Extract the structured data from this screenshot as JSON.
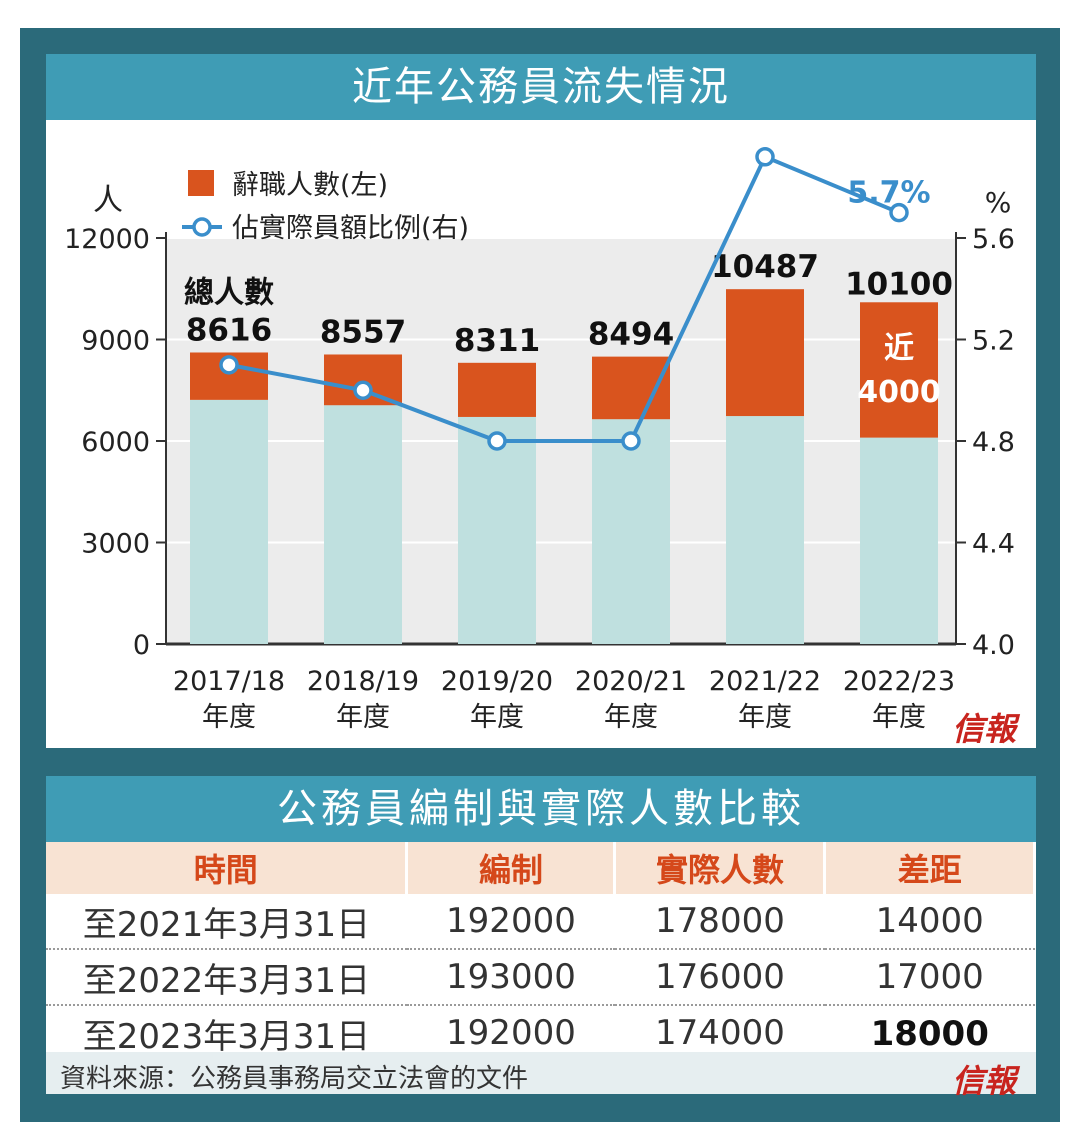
{
  "chart_title": "近年公務員流失情況",
  "logo_text": "信報",
  "chart_data": {
    "type": "bar",
    "title": "近年公務員流失情況",
    "categories": [
      "2017/18\n年度",
      "2018/19\n年度",
      "2019/20\n年度",
      "2020/21\n年度",
      "2021/22\n年度",
      "2022/23\n年度"
    ],
    "y_left_unit": "人",
    "y_right_unit": "%",
    "ylim_left": [
      0,
      12000
    ],
    "ylim_right": [
      4.0,
      5.6
    ],
    "yticks_left": [
      "0",
      "3000",
      "6000",
      "9000",
      "12000"
    ],
    "yticks_right": [
      "4.0",
      "4.4",
      "4.8",
      "5.2",
      "5.6"
    ],
    "total_label": "總人數",
    "totals": [
      8616,
      8557,
      8311,
      8494,
      10487,
      10100
    ],
    "total_labels": [
      "8616",
      "8557",
      "8311",
      "8494",
      "10487",
      "10100"
    ],
    "resignations": [
      1400,
      1500,
      1600,
      1850,
      3750,
      4000
    ],
    "ratio": [
      5.1,
      5.0,
      4.8,
      4.8,
      5.92,
      5.7
    ],
    "ratio_label_last": "5.7%",
    "bar_annotation": [
      "近",
      "4000"
    ],
    "legend": [
      {
        "label": "辭職人數(左)",
        "color": "#d9541e"
      },
      {
        "label": "佔實際員額比例(右)",
        "color": "#3a8ecb"
      }
    ],
    "colors": {
      "base": "#bfe0df",
      "resign": "#d9541e",
      "line": "#3a8ecb"
    }
  },
  "table": {
    "title": "公務員編制與實際人數比較",
    "headers": [
      "時間",
      "編制",
      "實際人數",
      "差距"
    ],
    "rows": [
      [
        "至2021年3月31日",
        "192000",
        "178000",
        "14000"
      ],
      [
        "至2022年3月31日",
        "193000",
        "176000",
        "17000"
      ],
      [
        "至2023年3月31日",
        "192000",
        "174000",
        "18000"
      ]
    ]
  },
  "source": "資料來源：公務員事務局交立法會的文件"
}
